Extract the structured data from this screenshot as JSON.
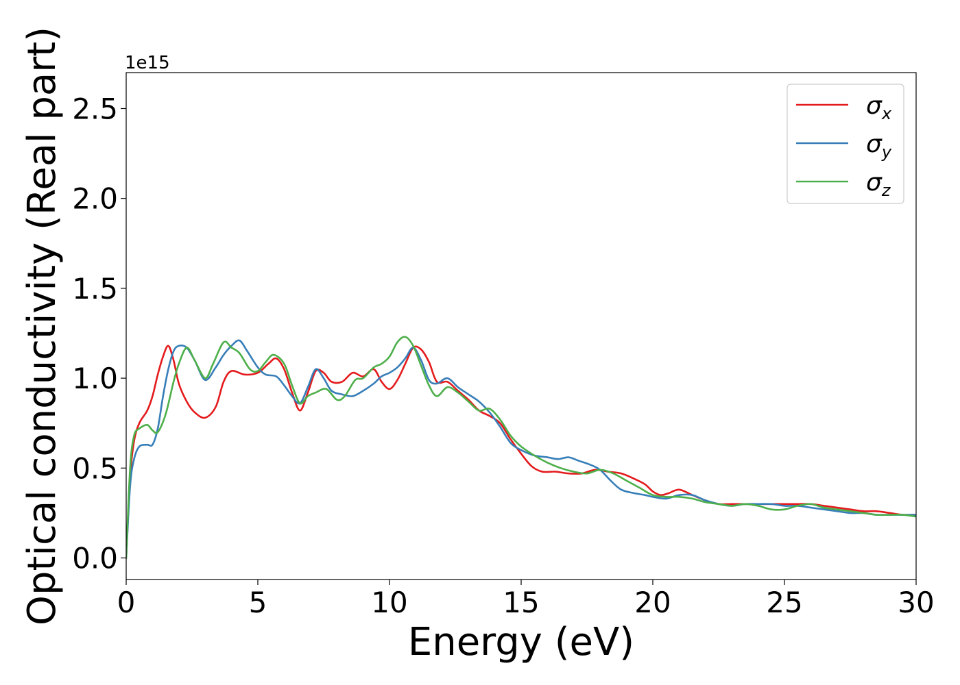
{
  "chart_data": {
    "type": "line",
    "xlabel": "Energy (eV)",
    "ylabel": "Optical conductivity (Real part)",
    "offset_text": "1e15",
    "xlim": [
      0,
      30
    ],
    "ylim": [
      -0.12,
      2.7
    ],
    "x_ticks": [
      0,
      5,
      10,
      15,
      20,
      25,
      30
    ],
    "x_tick_labels": [
      "0",
      "5",
      "10",
      "15",
      "20",
      "25",
      "30"
    ],
    "y_ticks": [
      0.0,
      0.5,
      1.0,
      1.5,
      2.0,
      2.5
    ],
    "y_tick_labels": [
      "0.0",
      "0.5",
      "1.0",
      "1.5",
      "2.0",
      "2.5"
    ],
    "grid": false,
    "legend_position": "top-right",
    "series": [
      {
        "name": "σx",
        "legend_symbol": "σ",
        "legend_sub": "x",
        "color": "#e41a1c",
        "x": [
          0,
          0.15,
          0.3,
          0.5,
          0.8,
          1.0,
          1.2,
          1.4,
          1.6,
          1.8,
          2.0,
          2.3,
          2.6,
          3.0,
          3.4,
          3.7,
          4.0,
          4.5,
          5.0,
          5.4,
          5.7,
          6.0,
          6.3,
          6.6,
          6.9,
          7.2,
          7.5,
          7.8,
          8.2,
          8.6,
          9.0,
          9.4,
          9.7,
          10.0,
          10.3,
          10.6,
          10.9,
          11.2,
          11.5,
          11.8,
          12.2,
          12.6,
          13.0,
          13.4,
          13.8,
          14.2,
          14.6,
          15.0,
          15.4,
          15.8,
          16.3,
          16.8,
          17.3,
          17.8,
          18.3,
          18.8,
          19.3,
          19.7,
          20.0,
          20.3,
          20.6,
          21.0,
          21.5,
          22.0,
          22.5,
          23.0,
          23.5,
          24.0,
          24.5,
          25.0,
          25.5,
          26.0,
          26.5,
          27.0,
          27.5,
          28.0,
          28.5,
          29.0,
          29.5,
          30.0
        ],
        "values": [
          0.0,
          0.45,
          0.65,
          0.75,
          0.82,
          0.9,
          1.02,
          1.12,
          1.18,
          1.1,
          0.97,
          0.87,
          0.81,
          0.78,
          0.84,
          0.98,
          1.04,
          1.02,
          1.03,
          1.08,
          1.11,
          1.05,
          0.92,
          0.82,
          0.92,
          1.04,
          1.03,
          0.98,
          0.98,
          1.03,
          1.01,
          1.05,
          0.98,
          0.94,
          0.99,
          1.08,
          1.17,
          1.16,
          1.09,
          0.98,
          0.98,
          0.93,
          0.88,
          0.82,
          0.79,
          0.75,
          0.66,
          0.58,
          0.51,
          0.48,
          0.48,
          0.47,
          0.47,
          0.49,
          0.48,
          0.47,
          0.44,
          0.41,
          0.37,
          0.35,
          0.36,
          0.38,
          0.35,
          0.32,
          0.3,
          0.3,
          0.3,
          0.3,
          0.3,
          0.3,
          0.3,
          0.3,
          0.29,
          0.28,
          0.27,
          0.26,
          0.26,
          0.25,
          0.24,
          0.24
        ]
      },
      {
        "name": "σy",
        "legend_symbol": "σ",
        "legend_sub": "y",
        "color": "#377eb8",
        "x": [
          0,
          0.15,
          0.3,
          0.5,
          0.8,
          1.0,
          1.2,
          1.4,
          1.6,
          1.8,
          2.0,
          2.3,
          2.6,
          3.0,
          3.4,
          3.7,
          4.0,
          4.3,
          4.6,
          5.0,
          5.3,
          5.7,
          6.0,
          6.3,
          6.6,
          6.9,
          7.2,
          7.5,
          7.8,
          8.2,
          8.6,
          9.0,
          9.4,
          9.7,
          10.0,
          10.3,
          10.6,
          10.9,
          11.2,
          11.5,
          11.8,
          12.2,
          12.6,
          13.0,
          13.4,
          13.8,
          14.2,
          14.6,
          15.0,
          15.5,
          16.0,
          16.4,
          16.8,
          17.2,
          17.6,
          18.0,
          18.4,
          18.8,
          19.3,
          19.7,
          20.0,
          20.5,
          21.0,
          21.5,
          22.0,
          22.5,
          23.0,
          23.5,
          24.0,
          24.5,
          25.0,
          25.5,
          26.0,
          26.5,
          27.0,
          27.5,
          28.0,
          28.5,
          29.0,
          29.5,
          30.0
        ],
        "values": [
          0.0,
          0.4,
          0.55,
          0.62,
          0.63,
          0.63,
          0.72,
          0.9,
          1.05,
          1.15,
          1.18,
          1.17,
          1.1,
          0.99,
          1.06,
          1.13,
          1.18,
          1.21,
          1.15,
          1.06,
          1.02,
          1.01,
          0.96,
          0.9,
          0.86,
          0.95,
          1.05,
          1.0,
          0.93,
          0.91,
          0.9,
          0.93,
          0.97,
          1.01,
          1.03,
          1.06,
          1.11,
          1.17,
          1.1,
          0.99,
          0.97,
          1.0,
          0.95,
          0.91,
          0.87,
          0.81,
          0.73,
          0.64,
          0.6,
          0.57,
          0.56,
          0.55,
          0.56,
          0.54,
          0.52,
          0.49,
          0.43,
          0.38,
          0.36,
          0.35,
          0.34,
          0.33,
          0.35,
          0.35,
          0.32,
          0.3,
          0.29,
          0.3,
          0.3,
          0.3,
          0.29,
          0.29,
          0.28,
          0.27,
          0.26,
          0.25,
          0.25,
          0.24,
          0.24,
          0.24,
          0.24
        ]
      },
      {
        "name": "σz",
        "legend_symbol": "σ",
        "legend_sub": "z",
        "color": "#4daf4a",
        "x": [
          0,
          0.15,
          0.3,
          0.5,
          0.8,
          1.0,
          1.2,
          1.5,
          1.8,
          2.0,
          2.3,
          2.6,
          3.0,
          3.3,
          3.7,
          4.0,
          4.3,
          4.7,
          5.0,
          5.3,
          5.6,
          6.0,
          6.3,
          6.6,
          6.9,
          7.2,
          7.6,
          8.0,
          8.3,
          8.7,
          9.0,
          9.4,
          9.7,
          10.0,
          10.3,
          10.6,
          10.9,
          11.2,
          11.5,
          11.8,
          12.2,
          12.6,
          13.0,
          13.4,
          13.8,
          14.2,
          14.6,
          15.0,
          15.5,
          16.0,
          16.5,
          17.0,
          17.5,
          18.0,
          18.5,
          19.0,
          19.5,
          20.0,
          20.5,
          21.0,
          21.5,
          22.0,
          22.5,
          23.0,
          23.5,
          24.0,
          24.5,
          25.0,
          25.5,
          26.0,
          26.5,
          27.0,
          27.5,
          28.0,
          28.5,
          29.0,
          29.5,
          30.0
        ],
        "values": [
          0.0,
          0.5,
          0.68,
          0.72,
          0.74,
          0.71,
          0.7,
          0.8,
          0.98,
          1.08,
          1.17,
          1.1,
          1.0,
          1.08,
          1.2,
          1.17,
          1.14,
          1.05,
          1.04,
          1.09,
          1.13,
          1.08,
          0.96,
          0.86,
          0.9,
          0.92,
          0.94,
          0.88,
          0.9,
          0.99,
          1.0,
          1.06,
          1.08,
          1.12,
          1.2,
          1.23,
          1.18,
          1.07,
          0.96,
          0.9,
          0.95,
          0.92,
          0.87,
          0.82,
          0.83,
          0.77,
          0.68,
          0.62,
          0.57,
          0.53,
          0.5,
          0.48,
          0.47,
          0.49,
          0.47,
          0.43,
          0.39,
          0.35,
          0.34,
          0.34,
          0.33,
          0.31,
          0.3,
          0.29,
          0.3,
          0.29,
          0.27,
          0.27,
          0.29,
          0.3,
          0.28,
          0.27,
          0.26,
          0.25,
          0.24,
          0.24,
          0.24,
          0.23
        ]
      }
    ]
  }
}
